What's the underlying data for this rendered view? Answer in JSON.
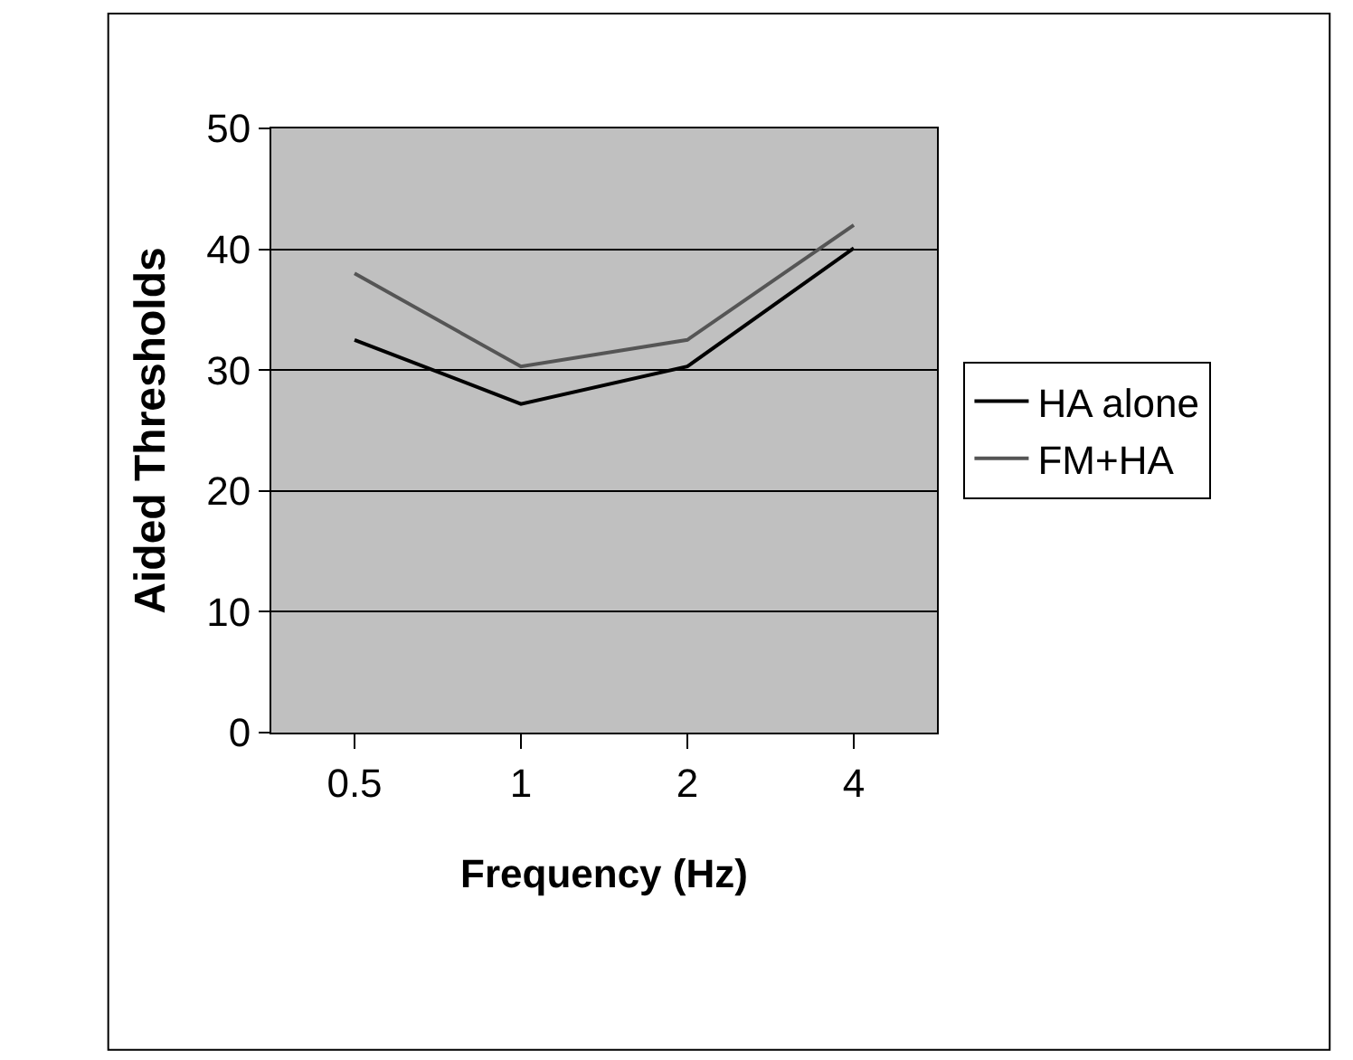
{
  "chart_data": {
    "type": "line",
    "xlabel": "Frequency (Hz)",
    "ylabel": "Aided Thresholds",
    "categories": [
      "0.5",
      "1",
      "2",
      "4"
    ],
    "series": [
      {
        "name": "HA alone",
        "color": "#000000",
        "values": [
          32.5,
          27.2,
          30.3,
          40.1
        ]
      },
      {
        "name": "FM+HA",
        "color": "#555555",
        "values": [
          38.0,
          30.3,
          32.5,
          42.0
        ]
      }
    ],
    "ylim": [
      0,
      50
    ],
    "yticks": [
      0,
      10,
      20,
      30,
      40,
      50
    ],
    "grid": "y",
    "legend": "right",
    "marker": "none",
    "line_style": "solid"
  }
}
